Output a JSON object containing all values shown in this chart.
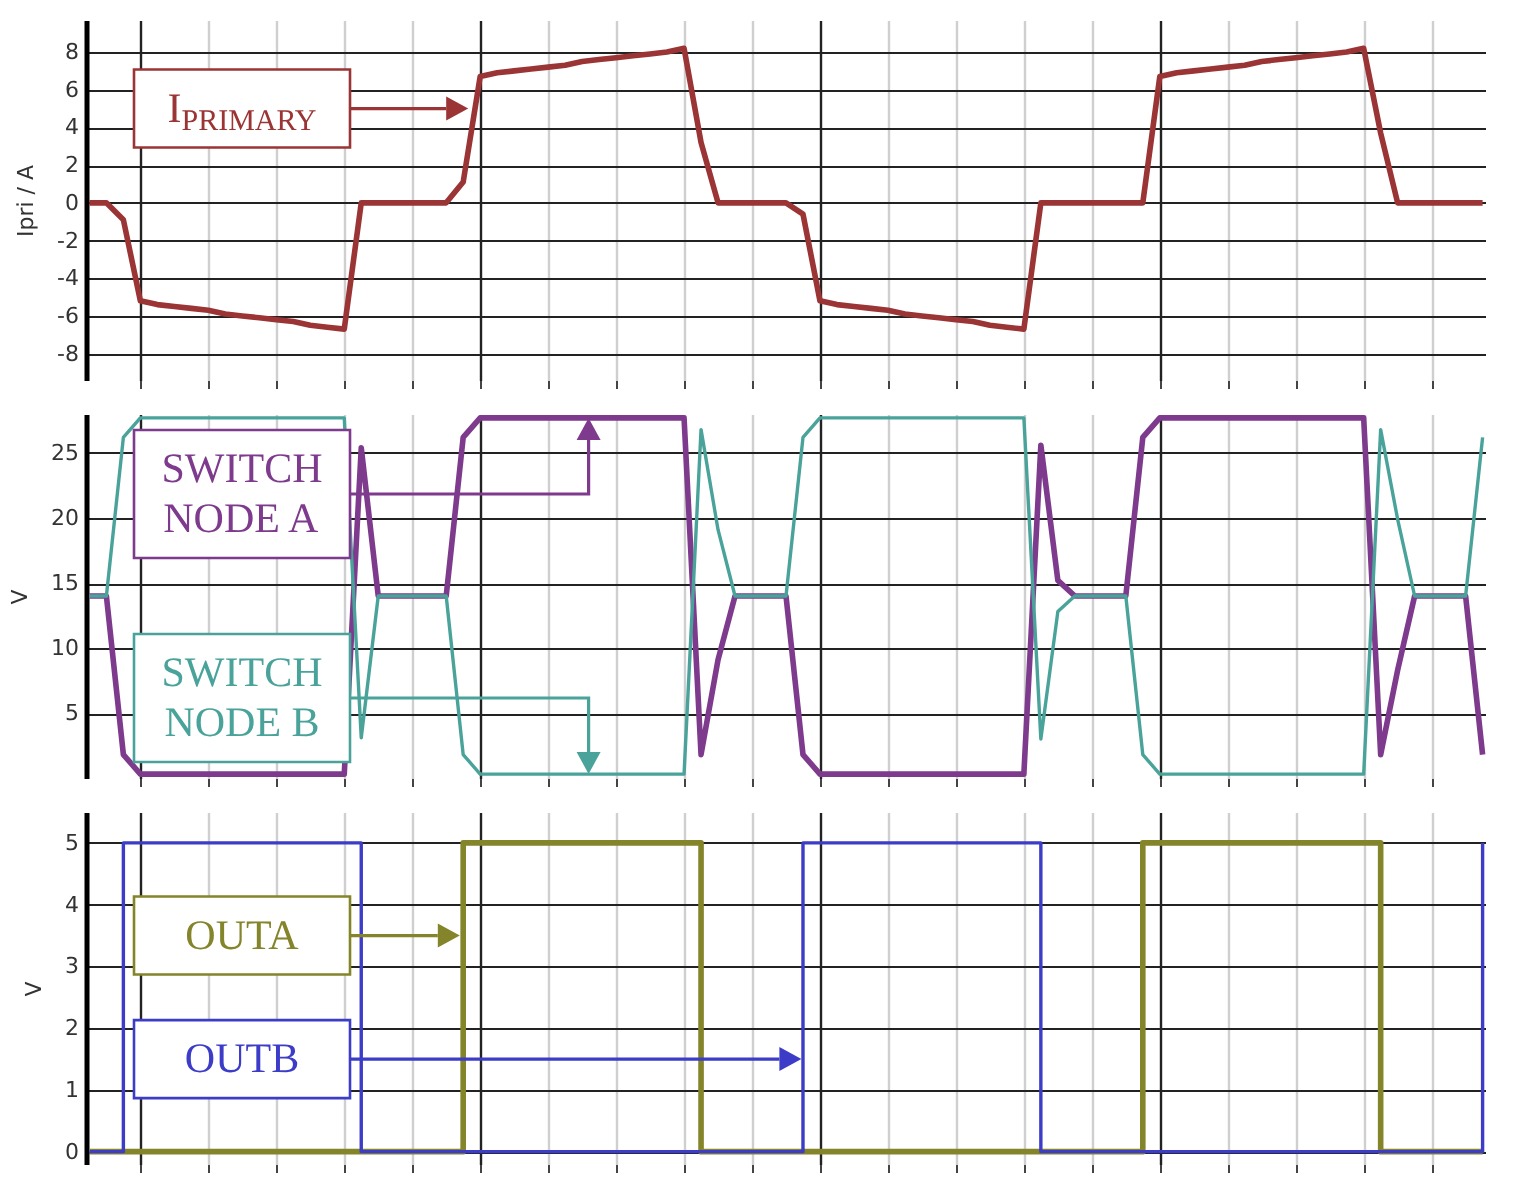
{
  "chart_data": [
    {
      "type": "line",
      "ylabel": "Ipri / A",
      "grid": true,
      "tick_labels": "y",
      "categories": [
        null,
        null,
        null,
        null,
        null,
        null,
        null,
        null,
        null,
        null,
        null,
        null,
        null,
        null,
        null,
        null,
        null,
        null,
        null,
        null,
        null,
        null,
        null,
        null,
        null,
        null,
        null,
        null,
        null,
        null,
        null,
        null,
        null,
        null,
        null,
        null,
        null,
        null,
        null,
        null,
        null,
        null,
        null,
        null,
        null,
        null,
        null,
        null,
        null,
        null,
        null,
        null,
        null,
        null,
        null,
        null,
        null,
        null,
        null,
        null,
        null,
        null,
        null,
        null,
        null,
        null,
        null,
        null,
        null,
        null,
        null,
        null,
        null,
        null,
        null,
        null,
        null,
        null,
        null,
        null,
        null,
        null,
        null
      ],
      "ylim": [
        -9.4,
        9.7
      ],
      "yticks": [
        -8,
        -6,
        -4,
        -2,
        0,
        2,
        4,
        6,
        8
      ],
      "series": [
        {
          "color": "#9b3434",
          "values": [
            0,
            0,
            -0.9,
            -5.2,
            -5.4,
            -5.5,
            -5.6,
            -5.7,
            -5.9,
            -6.0,
            -6.1,
            -6.2,
            -6.3,
            -6.5,
            -6.6,
            -6.7,
            0,
            0,
            0,
            0,
            0,
            0,
            1.1,
            6.7,
            6.9,
            7.0,
            7.1,
            7.2,
            7.3,
            7.5,
            7.6,
            7.7,
            7.8,
            7.9,
            8.0,
            8.2,
            3.2,
            0,
            0,
            0,
            0,
            0,
            -0.6,
            -5.2,
            -5.4,
            -5.5,
            -5.6,
            -5.7,
            -5.9,
            -6.0,
            -6.1,
            -6.2,
            -6.3,
            -6.5,
            -6.6,
            -6.7,
            0,
            0,
            0,
            0,
            0,
            0,
            0,
            6.7,
            6.9,
            7.0,
            7.1,
            7.2,
            7.3,
            7.5,
            7.6,
            7.7,
            7.8,
            7.9,
            8.0,
            8.2,
            3.7,
            0,
            0,
            0,
            0,
            0,
            0
          ]
        }
      ],
      "annotations": [
        "I$_{PRIMARY}$"
      ]
    },
    {
      "type": "line",
      "ylabel": "V",
      "grid": true,
      "tick_labels": "y",
      "categories": [
        null,
        null,
        null,
        null,
        null,
        null,
        null,
        null,
        null,
        null,
        null,
        null,
        null,
        null,
        null,
        null,
        null,
        null,
        null,
        null,
        null,
        null,
        null,
        null,
        null,
        null,
        null,
        null,
        null,
        null,
        null,
        null,
        null,
        null,
        null,
        null,
        null,
        null,
        null,
        null,
        null,
        null,
        null,
        null,
        null,
        null,
        null,
        null,
        null,
        null,
        null,
        null,
        null,
        null,
        null,
        null,
        null,
        null,
        null,
        null,
        null,
        null,
        null,
        null,
        null,
        null,
        null,
        null,
        null,
        null,
        null,
        null,
        null,
        null,
        null,
        null,
        null,
        null,
        null,
        null,
        null,
        null,
        null
      ],
      "ylim": [
        0,
        28
      ],
      "yticks": [
        5,
        10,
        15,
        20,
        25
      ],
      "series": [
        {
          "color": "#7e3a8c",
          "values": [
            14,
            14,
            1.8,
            0.3,
            0.3,
            0.3,
            0.3,
            0.3,
            0.3,
            0.3,
            0.3,
            0.3,
            0.3,
            0.3,
            0.3,
            0.3,
            25.4,
            14,
            14,
            14,
            14,
            14,
            26.2,
            27.7,
            27.7,
            27.7,
            27.7,
            27.7,
            27.7,
            27.7,
            27.7,
            27.7,
            27.7,
            27.7,
            27.7,
            27.7,
            1.8,
            9.1,
            14,
            14,
            14,
            14,
            1.8,
            0.3,
            0.3,
            0.3,
            0.3,
            0.3,
            0.3,
            0.3,
            0.3,
            0.3,
            0.3,
            0.3,
            0.3,
            0.3,
            25.6,
            15.2,
            14,
            14,
            14,
            14,
            26.2,
            27.7,
            27.7,
            27.7,
            27.7,
            27.7,
            27.7,
            27.7,
            27.7,
            27.7,
            27.7,
            27.7,
            27.7,
            27.7,
            1.8,
            8.3,
            14,
            14,
            14,
            14,
            1.8
          ]
        },
        {
          "color": "#4aa39a",
          "values": [
            14,
            14,
            26.2,
            27.7,
            27.7,
            27.7,
            27.7,
            27.7,
            27.7,
            27.7,
            27.7,
            27.7,
            27.7,
            27.7,
            27.7,
            27.7,
            3.1,
            14,
            14,
            14,
            14,
            14,
            1.8,
            0.3,
            0.3,
            0.3,
            0.3,
            0.3,
            0.3,
            0.3,
            0.3,
            0.3,
            0.3,
            0.3,
            0.3,
            0.3,
            26.8,
            19.1,
            14,
            14,
            14,
            14,
            26.2,
            27.7,
            27.7,
            27.7,
            27.7,
            27.7,
            27.7,
            27.7,
            27.7,
            27.7,
            27.7,
            27.7,
            27.7,
            27.7,
            3.0,
            12.8,
            14,
            14,
            14,
            14,
            1.8,
            0.3,
            0.3,
            0.3,
            0.3,
            0.3,
            0.3,
            0.3,
            0.3,
            0.3,
            0.3,
            0.3,
            0.3,
            0.3,
            26.8,
            19.9,
            14,
            14,
            14,
            14,
            26.2
          ]
        }
      ],
      "annotations": [
        "SWITCH NODE A",
        "SWITCH NODE B"
      ]
    },
    {
      "type": "step",
      "ylabel": "V",
      "grid": true,
      "tick_labels": "y",
      "categories": [
        null,
        null,
        null,
        null,
        null,
        null,
        null,
        null,
        null,
        null,
        null,
        null,
        null,
        null,
        null,
        null,
        null,
        null,
        null,
        null,
        null,
        null,
        null,
        null,
        null,
        null,
        null,
        null,
        null,
        null,
        null,
        null,
        null,
        null,
        null,
        null,
        null,
        null,
        null,
        null,
        null,
        null,
        null,
        null,
        null,
        null,
        null,
        null,
        null,
        null,
        null,
        null,
        null,
        null,
        null,
        null,
        null,
        null,
        null,
        null,
        null,
        null,
        null,
        null,
        null,
        null,
        null,
        null,
        null,
        null,
        null,
        null,
        null,
        null,
        null,
        null,
        null,
        null,
        null,
        null,
        null,
        null,
        null
      ],
      "ylim": [
        -0.2,
        5.5
      ],
      "yticks": [
        0,
        1,
        2,
        3,
        4,
        5
      ],
      "series": [
        {
          "color": "#84842a",
          "values": [
            0,
            0,
            0,
            0,
            0,
            0,
            0,
            0,
            0,
            0,
            0,
            0,
            0,
            0,
            0,
            0,
            0,
            0,
            0,
            0,
            0,
            0,
            5,
            5,
            5,
            5,
            5,
            5,
            5,
            5,
            5,
            5,
            5,
            5,
            5,
            5,
            0,
            0,
            0,
            0,
            0,
            0,
            0,
            0,
            0,
            0,
            0,
            0,
            0,
            0,
            0,
            0,
            0,
            0,
            0,
            0,
            0,
            0,
            0,
            0,
            0,
            0,
            5,
            5,
            5,
            5,
            5,
            5,
            5,
            5,
            5,
            5,
            5,
            5,
            5,
            5,
            0,
            0,
            0,
            0,
            0,
            0,
            0
          ]
        },
        {
          "color": "#3c3cc8",
          "values": [
            0,
            0,
            5,
            5,
            5,
            5,
            5,
            5,
            5,
            5,
            5,
            5,
            5,
            5,
            5,
            5,
            0,
            0,
            0,
            0,
            0,
            0,
            0,
            0,
            0,
            0,
            0,
            0,
            0,
            0,
            0,
            0,
            0,
            0,
            0,
            0,
            0,
            0,
            0,
            0,
            0,
            0,
            5,
            5,
            5,
            5,
            5,
            5,
            5,
            5,
            5,
            5,
            5,
            5,
            5,
            5,
            0,
            0,
            0,
            0,
            0,
            0,
            0,
            0,
            0,
            0,
            0,
            0,
            0,
            0,
            0,
            0,
            0,
            0,
            0,
            0,
            0,
            0,
            0,
            0,
            0,
            0,
            5
          ]
        }
      ],
      "annotations": [
        "OUTA",
        "OUTB"
      ]
    }
  ]
}
